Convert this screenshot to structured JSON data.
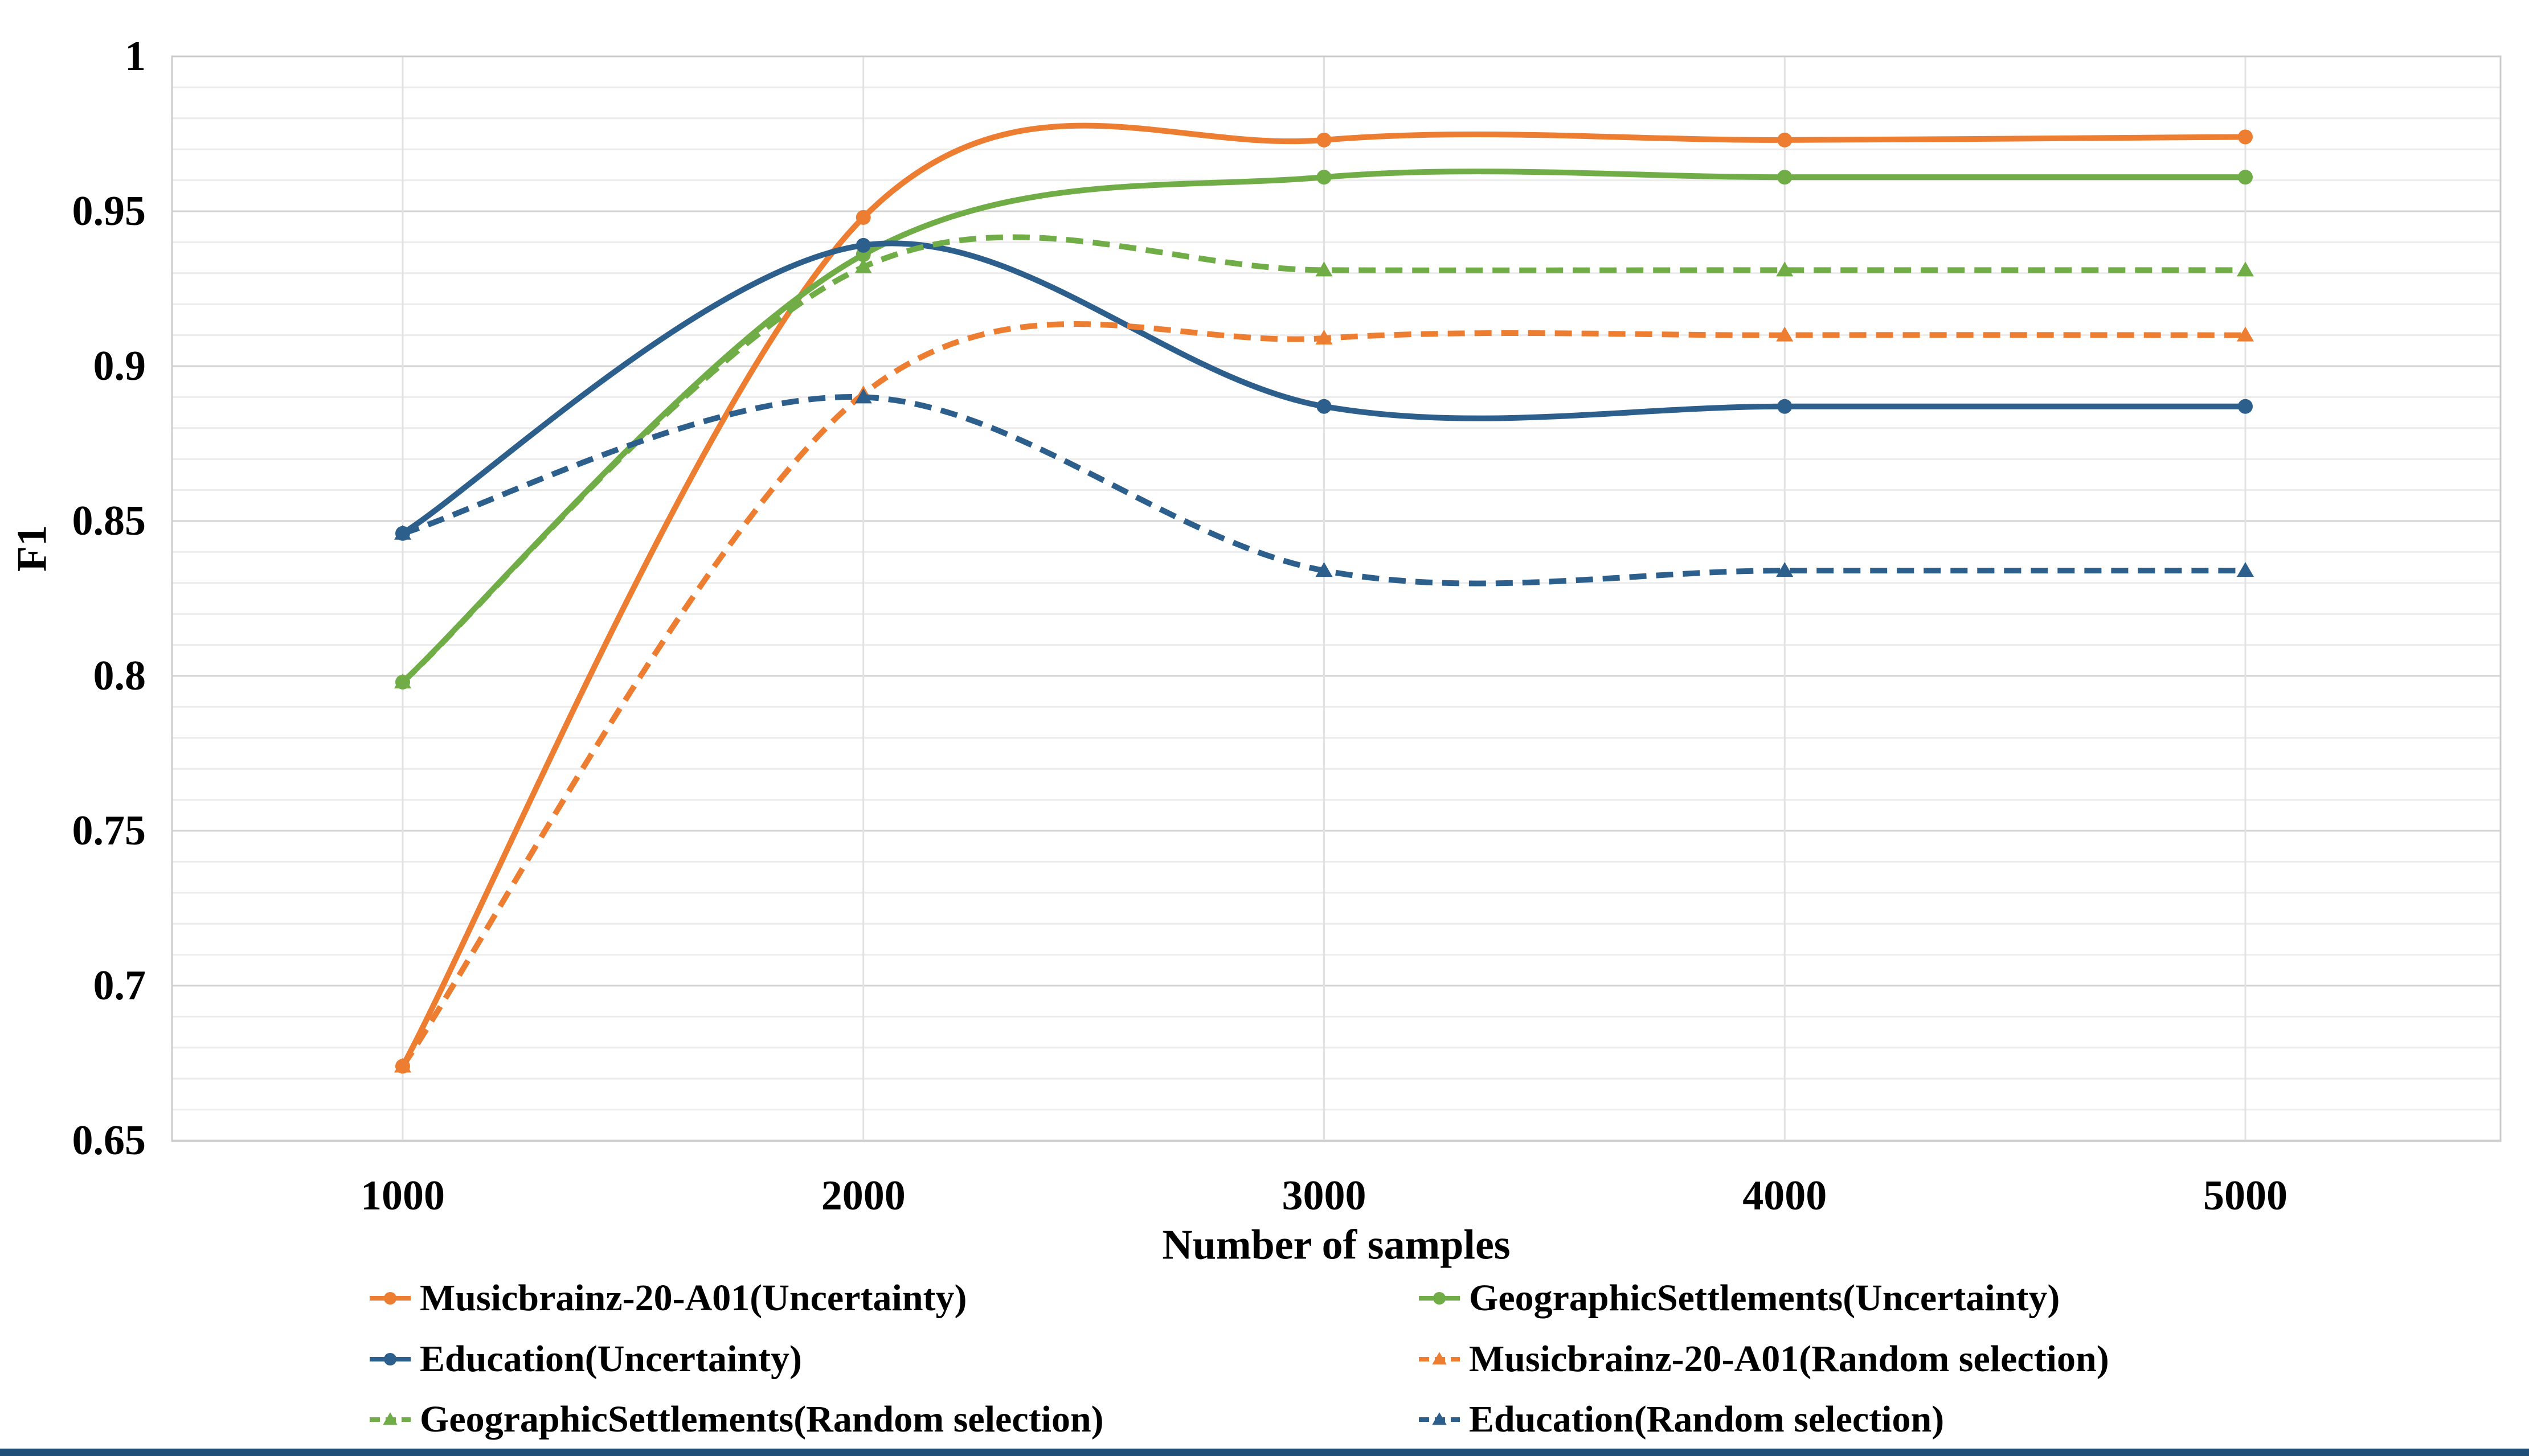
{
  "page": {
    "background": "#ffffff",
    "bottom_bar_color": "#1f4e79"
  },
  "chart_data": {
    "type": "line",
    "title": "",
    "xlabel": "Number of samples",
    "ylabel": "F1",
    "x": [
      1000,
      2000,
      3000,
      4000,
      5000
    ],
    "x_tick_labels": [
      "1000",
      "2000",
      "3000",
      "4000",
      "5000"
    ],
    "y_ticks": [
      1,
      0.95,
      0.9,
      0.85,
      0.8,
      0.75,
      0.7,
      0.65
    ],
    "y_tick_labels": [
      "1",
      "0.95",
      "0.9",
      "0.85",
      "0.8",
      "0.75",
      "0.7",
      "0.65"
    ],
    "ylim": [
      0.65,
      1.0
    ],
    "minor_grid_step": 0.01,
    "major_grid_step": 0.05,
    "grid": true,
    "smooth_lines": true,
    "legend_position": "bottom-two-columns",
    "series": [
      {
        "name": "Musicbrainz-20-A01(Uncertainty)",
        "color": "#ED7D31",
        "style": "solid",
        "marker": "circle",
        "values": [
          0.674,
          0.948,
          0.973,
          0.973,
          0.974
        ]
      },
      {
        "name": "GeographicSettlements(Uncertainty)",
        "color": "#70AD47",
        "style": "solid",
        "marker": "circle",
        "values": [
          0.798,
          0.936,
          0.961,
          0.961,
          0.961
        ]
      },
      {
        "name": "Education(Uncertainty)",
        "color": "#2D5F8C",
        "style": "solid",
        "marker": "circle",
        "values": [
          0.846,
          0.939,
          0.887,
          0.887,
          0.887
        ]
      },
      {
        "name": "Musicbrainz-20-A01(Random selection)",
        "color": "#ED7D31",
        "style": "dashed",
        "marker": "triangle",
        "values": [
          0.674,
          0.891,
          0.909,
          0.91,
          0.91
        ]
      },
      {
        "name": "GeographicSettlements(Random selection)",
        "color": "#70AD47",
        "style": "dashed",
        "marker": "triangle",
        "values": [
          0.798,
          0.932,
          0.931,
          0.931,
          0.931
        ]
      },
      {
        "name": "Education(Random selection)",
        "color": "#2D5F8C",
        "style": "dashed",
        "marker": "triangle",
        "values": [
          0.846,
          0.89,
          0.834,
          0.834,
          0.834
        ]
      }
    ],
    "legend_columns": [
      [
        0,
        2,
        4
      ],
      [
        1,
        3,
        5
      ]
    ]
  }
}
